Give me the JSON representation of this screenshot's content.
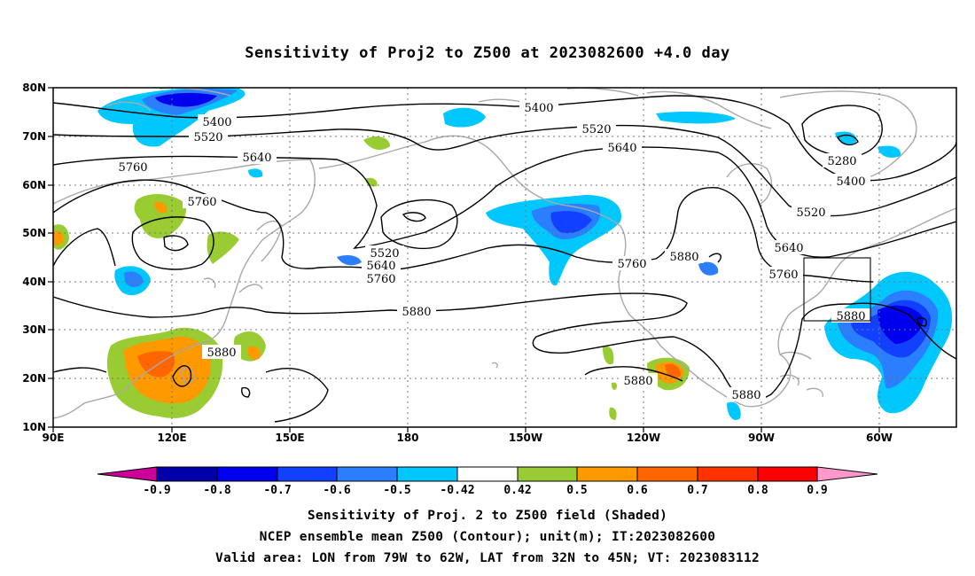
{
  "title": "Sensitivity of Proj2 to Z500 at 2023082600 +4.0 day",
  "lat_labels": [
    "80N",
    "70N",
    "60N",
    "50N",
    "40N",
    "30N",
    "20N",
    "10N"
  ],
  "lon_labels": [
    "90E",
    "120E",
    "150E",
    "180",
    "150W",
    "120W",
    "90W",
    "60W"
  ],
  "contour_labels": [
    "5400",
    "5520",
    "5640",
    "5760",
    "5760",
    "5400",
    "5520",
    "5640",
    "5520",
    "5640",
    "5760",
    "5760",
    "5880",
    "5880",
    "5880",
    "5880",
    "5880",
    "5280",
    "5400",
    "5520",
    "5640",
    "5760",
    "5880"
  ],
  "colorbar": {
    "labels": [
      "-0.9",
      "-0.8",
      "-0.7",
      "-0.6",
      "-0.5",
      "-0.42",
      "0.42",
      "0.5",
      "0.6",
      "0.7",
      "0.8",
      "0.9"
    ],
    "colors": [
      "#cc0099",
      "#0000aa",
      "#0000ee",
      "#1140ff",
      "#2b7fff",
      "#00c8ff",
      "#ffffff",
      "#99cc33",
      "#ff9900",
      "#ff6600",
      "#ff3300",
      "#ff0000",
      "#ff99cc"
    ]
  },
  "valid_area": {
    "lon": [
      "79W",
      "62W"
    ],
    "lat": [
      "32N",
      "45N"
    ]
  },
  "captions": [
    "Sensitivity of Proj. 2 to Z500 field (Shaded)",
    "NCEP ensemble mean Z500 (Contour); unit(m); IT:2023082600",
    "Valid area: LON from 79W to 62W, LAT from 32N to 45N; VT: 2023083112"
  ]
}
